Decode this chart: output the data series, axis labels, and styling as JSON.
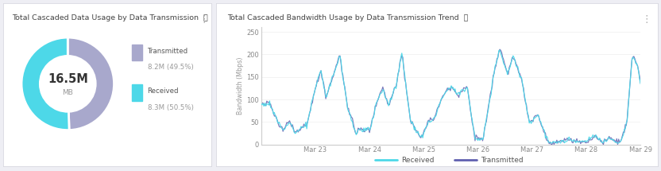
{
  "donut_title": "Total Cascaded Data Usage by Data Transmission",
  "donut_center_text": "16.5M",
  "donut_center_sub": "MB",
  "donut_values": [
    49.5,
    50.5
  ],
  "donut_colors": [
    "#a8a8cc",
    "#4dd8e8"
  ],
  "donut_labels": [
    "Transmitted",
    "Received"
  ],
  "donut_legend_values": [
    "8.2M (49.5%)",
    "8.3M (50.5%)"
  ],
  "line_title": "Total Cascaded Bandwidth Usage by Data Transmission Trend",
  "line_ylabel": "Bandwidth (Mbps)",
  "line_yticks": [
    0,
    50,
    100,
    150,
    200,
    250
  ],
  "line_xtick_labels": [
    "Mar 23",
    "Mar 24",
    "Mar 25",
    "Mar 26",
    "Mar 27",
    "Mar 28",
    "Mar 29"
  ],
  "line_color_received": "#4dd8e8",
  "line_color_transmitted": "#6060b0",
  "bg_color": "#f5f5fa",
  "panel_bg": "#ffffff",
  "title_fontsize": 6.8,
  "legend_fontsize": 6.5,
  "tick_fontsize": 6.0
}
